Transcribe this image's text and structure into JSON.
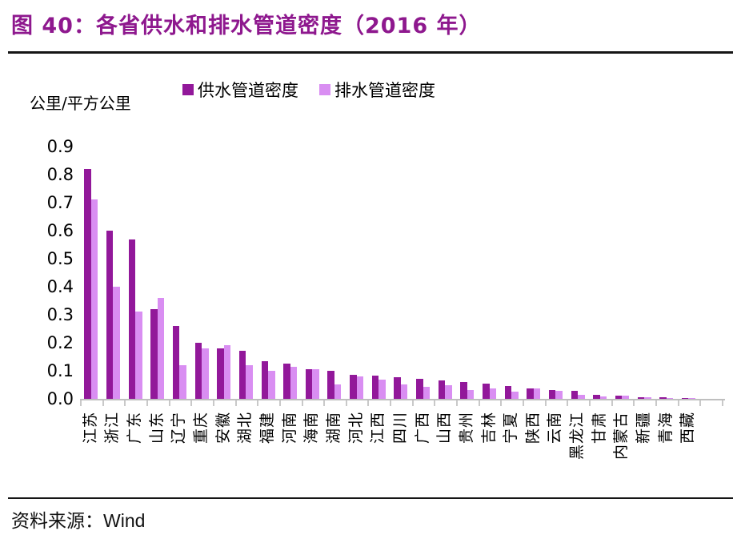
{
  "title": "图 40：各省供水和排水管道密度（2016 年）",
  "unit_label": "公里/平方公里",
  "source": {
    "prefix": "资料来源：",
    "name": "Wind"
  },
  "colors": {
    "title": "#8E188E",
    "supply_bar": "#92189A",
    "drainage_bar": "#D98EF2",
    "axis": "#BFBFBF",
    "tick": "#C9C9C9",
    "rule": "#151515"
  },
  "legend": [
    {
      "label": "供水管道密度",
      "color": "#92189A"
    },
    {
      "label": "排水管道密度",
      "color": "#D98EF2"
    }
  ],
  "chart_data": {
    "type": "bar",
    "title": "各省供水和排水管道密度（2016 年）",
    "xlabel": "",
    "ylabel": "公里/平方公里",
    "ylim": [
      0,
      0.9
    ],
    "ytick_step": 0.1,
    "y_tick_labels": [
      "0.9",
      "0.8",
      "0.7",
      "0.6",
      "0.5",
      "0.4",
      "0.3",
      "0.2",
      "0.1",
      "0.0"
    ],
    "grid": false,
    "legend_position": "top",
    "categories": [
      "江苏",
      "浙江",
      "广东",
      "山东",
      "辽宁",
      "重庆",
      "安徽",
      "湖北",
      "福建",
      "河南",
      "海南",
      "湖南",
      "河北",
      "江西",
      "四川",
      "广西",
      "山西",
      "贵州",
      "吉林",
      "宁夏",
      "陕西",
      "云南",
      "黑龙江",
      "甘肃",
      "内蒙古",
      "新疆",
      "青海",
      "西藏"
    ],
    "series": [
      {
        "name": "供水管道密度",
        "color": "#92189A",
        "values": [
          0.82,
          0.6,
          0.57,
          0.32,
          0.26,
          0.2,
          0.18,
          0.17,
          0.135,
          0.125,
          0.105,
          0.1,
          0.085,
          0.082,
          0.078,
          0.072,
          0.066,
          0.06,
          0.055,
          0.046,
          0.038,
          0.032,
          0.028,
          0.013,
          0.011,
          0.007,
          0.005,
          0.002
        ]
      },
      {
        "name": "排水管道密度",
        "color": "#D98EF2",
        "values": [
          0.71,
          0.4,
          0.31,
          0.36,
          0.12,
          0.18,
          0.19,
          0.12,
          0.1,
          0.115,
          0.105,
          0.05,
          0.08,
          0.068,
          0.05,
          0.042,
          0.048,
          0.032,
          0.038,
          0.026,
          0.036,
          0.028,
          0.015,
          0.009,
          0.011,
          0.005,
          0.004,
          0.001
        ]
      }
    ]
  }
}
